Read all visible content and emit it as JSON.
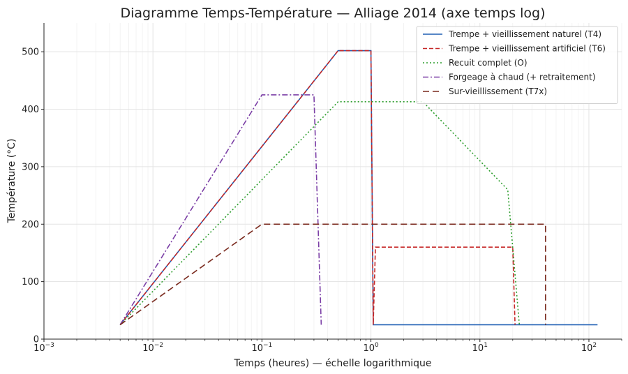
{
  "chart_data": {
    "type": "line",
    "title": "Diagramme Temps-Température — Alliage 2014 (axe temps log)",
    "xlabel": "Temps (heures) — échelle logarithmique",
    "ylabel": "Température (°C)",
    "xscale": "log",
    "xlim": [
      0.001,
      200
    ],
    "ylim": [
      0,
      550
    ],
    "grid": true,
    "legend_position": "top-right",
    "x_ticks": [
      {
        "value": 0.001,
        "base": "10",
        "exp": "−3"
      },
      {
        "value": 0.01,
        "base": "10",
        "exp": "−2"
      },
      {
        "value": 0.1,
        "base": "10",
        "exp": "−1"
      },
      {
        "value": 1,
        "base": "10",
        "exp": "0"
      },
      {
        "value": 10,
        "base": "10",
        "exp": "1"
      },
      {
        "value": 100,
        "base": "10",
        "exp": "2"
      }
    ],
    "y_ticks": [
      0,
      100,
      200,
      300,
      400,
      500
    ],
    "series": [
      {
        "name": "Trempe + vieillissement naturel (T4)",
        "color": "#1f5fb4",
        "dash": "solid",
        "points": [
          [
            0.005,
            25
          ],
          [
            0.5,
            502
          ],
          [
            1.0,
            502
          ],
          [
            1.05,
            25
          ],
          [
            120,
            25
          ]
        ]
      },
      {
        "name": "Trempe + vieillissement artificiel (T6)",
        "color": "#c62828",
        "dash": "dashed",
        "points": [
          [
            0.005,
            25
          ],
          [
            0.5,
            502
          ],
          [
            1.0,
            502
          ],
          [
            1.05,
            25
          ],
          [
            1.1,
            160
          ],
          [
            20,
            160
          ],
          [
            21,
            25
          ]
        ]
      },
      {
        "name": "Recuit complet (O)",
        "color": "#2e9e2e",
        "dash": "dotted",
        "points": [
          [
            0.005,
            25
          ],
          [
            0.5,
            413
          ],
          [
            3,
            413
          ],
          [
            18,
            260
          ],
          [
            23,
            25
          ]
        ]
      },
      {
        "name": "Forgeage à chaud (+ retraitement)",
        "color": "#7b3fa6",
        "dash": "dashdot",
        "points": [
          [
            0.005,
            25
          ],
          [
            0.1,
            425
          ],
          [
            0.3,
            425
          ],
          [
            0.35,
            25
          ]
        ]
      },
      {
        "name": "Sur-vieillissement (T7x)",
        "color": "#7a2a1e",
        "dash": "longdash",
        "points": [
          [
            0.005,
            25
          ],
          [
            0.1,
            200
          ],
          [
            40,
            200
          ],
          [
            40,
            25
          ]
        ]
      }
    ]
  }
}
